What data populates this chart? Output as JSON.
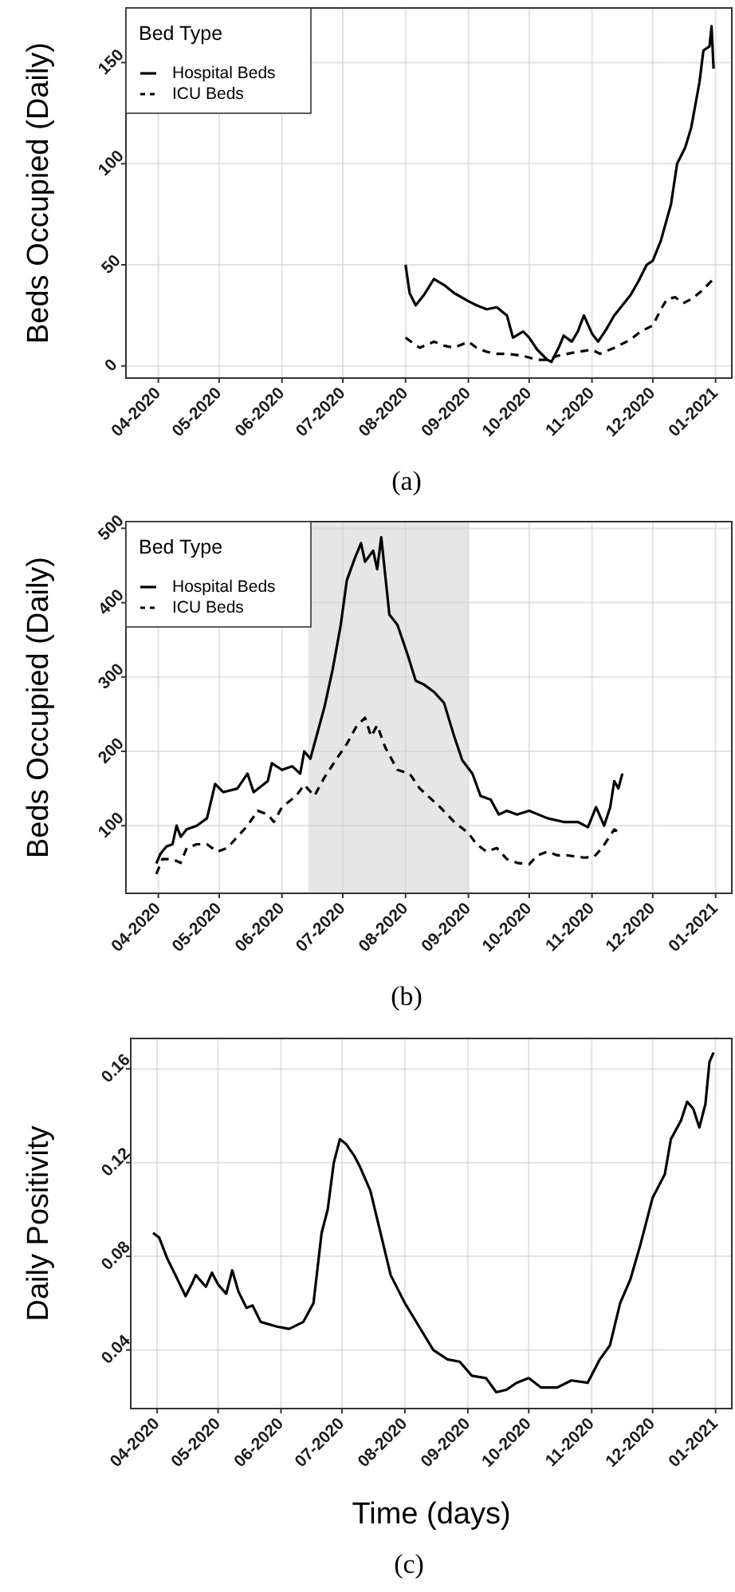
{
  "chart_data": [
    {
      "type": "line",
      "ylabel": "Beds Occupied (Daily)",
      "legend_title": "Bed Type",
      "legend": "top left",
      "grid": true,
      "annotations": [
        "(a)"
      ],
      "xlim": [
        "2020-03-16",
        "2021-01-09"
      ],
      "ylim": [
        -6,
        177
      ],
      "yticks": [
        0,
        50,
        100,
        150
      ],
      "xticks": [
        {
          "value": "2020-04-01",
          "label": "04-2020"
        },
        {
          "value": "2020-05-01",
          "label": "05-2020"
        },
        {
          "value": "2020-06-01",
          "label": "06-2020"
        },
        {
          "value": "2020-07-01",
          "label": "07-2020"
        },
        {
          "value": "2020-08-01",
          "label": "08-2020"
        },
        {
          "value": "2020-09-01",
          "label": "09-2020"
        },
        {
          "value": "2020-10-01",
          "label": "10-2020"
        },
        {
          "value": "2020-11-01",
          "label": "11-2020"
        },
        {
          "value": "2020-12-01",
          "label": "12-2020"
        },
        {
          "value": "2021-01-01",
          "label": "01-2021"
        }
      ],
      "series": [
        {
          "name": "Hospital Beds",
          "color": "#000000",
          "line_style": "solid",
          "x": [
            "2020-08-01",
            "2020-08-03",
            "2020-08-06",
            "2020-08-10",
            "2020-08-15",
            "2020-08-20",
            "2020-08-25",
            "2020-09-01",
            "2020-09-05",
            "2020-09-10",
            "2020-09-15",
            "2020-09-20",
            "2020-09-23",
            "2020-09-28",
            "2020-10-01",
            "2020-10-05",
            "2020-10-10",
            "2020-10-12",
            "2020-10-16",
            "2020-10-18",
            "2020-10-22",
            "2020-10-25",
            "2020-10-28",
            "2020-11-01",
            "2020-11-04",
            "2020-11-08",
            "2020-11-12",
            "2020-11-16",
            "2020-11-20",
            "2020-11-24",
            "2020-11-28",
            "2020-12-01",
            "2020-12-05",
            "2020-12-10",
            "2020-12-13",
            "2020-12-17",
            "2020-12-20",
            "2020-12-24",
            "2020-12-26",
            "2020-12-29",
            "2020-12-30",
            "2020-12-31"
          ],
          "values": [
            50,
            36,
            30,
            35,
            43,
            40,
            36,
            32,
            30,
            28,
            29,
            25,
            14,
            17,
            14,
            8,
            3,
            2,
            10,
            15,
            12,
            17,
            25,
            16,
            12,
            18,
            25,
            30,
            35,
            42,
            50,
            52,
            62,
            80,
            100,
            108,
            118,
            140,
            156,
            158,
            168,
            147
          ]
        },
        {
          "name": "ICU Beds",
          "color": "#000000",
          "line_style": "dashed",
          "x": [
            "2020-08-01",
            "2020-08-05",
            "2020-08-08",
            "2020-08-15",
            "2020-08-20",
            "2020-08-25",
            "2020-09-01",
            "2020-09-05",
            "2020-09-10",
            "2020-09-15",
            "2020-09-20",
            "2020-09-28",
            "2020-10-05",
            "2020-10-10",
            "2020-10-15",
            "2020-10-25",
            "2020-11-01",
            "2020-11-05",
            "2020-11-12",
            "2020-11-20",
            "2020-11-25",
            "2020-12-01",
            "2020-12-05",
            "2020-12-08",
            "2020-12-12",
            "2020-12-16",
            "2020-12-20",
            "2020-12-25",
            "2020-12-31"
          ],
          "values": [
            14,
            11,
            9,
            12,
            10,
            9,
            12,
            9,
            7,
            6,
            6,
            5,
            3,
            3,
            5,
            7,
            8,
            6,
            9,
            13,
            17,
            20,
            28,
            33,
            34,
            31,
            33,
            37,
            43
          ]
        }
      ]
    },
    {
      "type": "line",
      "ylabel": "Beds Occupied (Daily)",
      "legend_title": "Bed Type",
      "legend": "top left",
      "grid": true,
      "annotations": [
        "(b)"
      ],
      "xlim": [
        "2020-03-16",
        "2021-01-09"
      ],
      "ylim": [
        9,
        509
      ],
      "yticks": [
        100,
        200,
        300,
        400,
        500
      ],
      "xticks": [
        {
          "value": "2020-04-01",
          "label": "04-2020"
        },
        {
          "value": "2020-05-01",
          "label": "05-2020"
        },
        {
          "value": "2020-06-01",
          "label": "06-2020"
        },
        {
          "value": "2020-07-01",
          "label": "07-2020"
        },
        {
          "value": "2020-08-01",
          "label": "08-2020"
        },
        {
          "value": "2020-09-01",
          "label": "09-2020"
        },
        {
          "value": "2020-10-01",
          "label": "10-2020"
        },
        {
          "value": "2020-11-01",
          "label": "11-2020"
        },
        {
          "value": "2020-12-01",
          "label": "12-2020"
        },
        {
          "value": "2021-01-01",
          "label": "01-2021"
        }
      ],
      "bands": [
        {
          "axis": "x",
          "from": "2020-06-14",
          "to": "2020-09-01",
          "color": "#e6e6e6"
        }
      ],
      "series": [
        {
          "name": "Hospital Beds",
          "color": "#000000",
          "line_style": "solid",
          "x": [
            "2020-03-31",
            "2020-04-02",
            "2020-04-05",
            "2020-04-08",
            "2020-04-10",
            "2020-04-12",
            "2020-04-15",
            "2020-04-20",
            "2020-04-25",
            "2020-04-29",
            "2020-05-03",
            "2020-05-10",
            "2020-05-15",
            "2020-05-18",
            "2020-05-25",
            "2020-05-27",
            "2020-06-01",
            "2020-06-06",
            "2020-06-10",
            "2020-06-12",
            "2020-06-15",
            "2020-06-18",
            "2020-06-22",
            "2020-06-26",
            "2020-06-30",
            "2020-07-03",
            "2020-07-07",
            "2020-07-10",
            "2020-07-12",
            "2020-07-16",
            "2020-07-18",
            "2020-07-20",
            "2020-07-24",
            "2020-07-28",
            "2020-08-02",
            "2020-08-06",
            "2020-08-10",
            "2020-08-15",
            "2020-08-20",
            "2020-08-25",
            "2020-08-29",
            "2020-09-03",
            "2020-09-07",
            "2020-09-12",
            "2020-09-16",
            "2020-09-20",
            "2020-09-25",
            "2020-10-01",
            "2020-10-10",
            "2020-10-18",
            "2020-10-25",
            "2020-10-30",
            "2020-11-03",
            "2020-11-07",
            "2020-11-10",
            "2020-11-12",
            "2020-11-14",
            "2020-11-16"
          ],
          "values": [
            49,
            62,
            72,
            75,
            100,
            85,
            95,
            100,
            110,
            156,
            145,
            150,
            170,
            145,
            160,
            184,
            175,
            180,
            170,
            200,
            190,
            220,
            260,
            310,
            370,
            430,
            460,
            480,
            455,
            470,
            445,
            488,
            384,
            370,
            330,
            295,
            290,
            280,
            265,
            220,
            188,
            170,
            140,
            135,
            115,
            120,
            115,
            120,
            110,
            105,
            105,
            98,
            125,
            100,
            125,
            160,
            150,
            170
          ]
        },
        {
          "name": "ICU Beds",
          "color": "#000000",
          "line_style": "dashed",
          "x": [
            "2020-03-31",
            "2020-04-03",
            "2020-04-08",
            "2020-04-12",
            "2020-04-15",
            "2020-04-20",
            "2020-04-25",
            "2020-04-30",
            "2020-05-05",
            "2020-05-10",
            "2020-05-15",
            "2020-05-20",
            "2020-05-25",
            "2020-05-28",
            "2020-06-01",
            "2020-06-08",
            "2020-06-12",
            "2020-06-17",
            "2020-06-22",
            "2020-06-28",
            "2020-07-03",
            "2020-07-08",
            "2020-07-12",
            "2020-07-15",
            "2020-07-18",
            "2020-07-22",
            "2020-07-28",
            "2020-08-03",
            "2020-08-08",
            "2020-08-12",
            "2020-08-18",
            "2020-08-25",
            "2020-09-01",
            "2020-09-05",
            "2020-09-10",
            "2020-09-15",
            "2020-09-20",
            "2020-09-25",
            "2020-10-01",
            "2020-10-05",
            "2020-10-10",
            "2020-10-15",
            "2020-10-20",
            "2020-10-28",
            "2020-11-02",
            "2020-11-06",
            "2020-11-12",
            "2020-11-16"
          ],
          "values": [
            35,
            55,
            55,
            50,
            70,
            75,
            75,
            65,
            70,
            85,
            100,
            120,
            115,
            105,
            125,
            140,
            155,
            140,
            165,
            190,
            210,
            235,
            245,
            220,
            235,
            205,
            175,
            170,
            150,
            140,
            125,
            105,
            90,
            75,
            65,
            70,
            55,
            50,
            48,
            60,
            65,
            60,
            60,
            57,
            58,
            70,
            95,
            88
          ]
        }
      ]
    },
    {
      "type": "line",
      "ylabel": "Daily Positivity",
      "xlabel": "Time (days)",
      "grid": true,
      "annotations": [
        "(c)"
      ],
      "xlim": [
        "2020-03-19",
        "2021-01-09"
      ],
      "ylim": [
        0.015,
        0.173
      ],
      "yticks": [
        {
          "value": 0.04,
          "label": "0.04"
        },
        {
          "value": 0.08,
          "label": "0.08"
        },
        {
          "value": 0.12,
          "label": "0.12"
        },
        {
          "value": 0.16,
          "label": "0.16"
        }
      ],
      "xticks": [
        {
          "value": "2020-04-01",
          "label": "04-2020"
        },
        {
          "value": "2020-05-01",
          "label": "05-2020"
        },
        {
          "value": "2020-06-01",
          "label": "06-2020"
        },
        {
          "value": "2020-07-01",
          "label": "07-2020"
        },
        {
          "value": "2020-08-01",
          "label": "08-2020"
        },
        {
          "value": "2020-09-01",
          "label": "09-2020"
        },
        {
          "value": "2020-10-01",
          "label": "10-2020"
        },
        {
          "value": "2020-11-01",
          "label": "11-2020"
        },
        {
          "value": "2020-12-01",
          "label": "12-2020"
        },
        {
          "value": "2021-01-01",
          "label": "01-2021"
        }
      ],
      "series": [
        {
          "color": "#000000",
          "line_style": "solid",
          "x": [
            "2020-03-30",
            "2020-04-02",
            "2020-04-06",
            "2020-04-10",
            "2020-04-15",
            "2020-04-18",
            "2020-04-20",
            "2020-04-25",
            "2020-04-28",
            "2020-05-01",
            "2020-05-05",
            "2020-05-08",
            "2020-05-11",
            "2020-05-15",
            "2020-05-18",
            "2020-05-22",
            "2020-05-30",
            "2020-06-05",
            "2020-06-12",
            "2020-06-17",
            "2020-06-21",
            "2020-06-24",
            "2020-06-27",
            "2020-06-30",
            "2020-07-03",
            "2020-07-07",
            "2020-07-10",
            "2020-07-15",
            "2020-07-20",
            "2020-07-25",
            "2020-08-01",
            "2020-08-08",
            "2020-08-15",
            "2020-08-22",
            "2020-08-28",
            "2020-09-03",
            "2020-09-10",
            "2020-09-15",
            "2020-09-20",
            "2020-09-25",
            "2020-10-01",
            "2020-10-07",
            "2020-10-15",
            "2020-10-22",
            "2020-10-30",
            "2020-11-05",
            "2020-11-10",
            "2020-11-15",
            "2020-11-20",
            "2020-11-25",
            "2020-12-01",
            "2020-12-07",
            "2020-12-10",
            "2020-12-15",
            "2020-12-18",
            "2020-12-21",
            "2020-12-24",
            "2020-12-27",
            "2020-12-29",
            "2020-12-31"
          ],
          "values": [
            0.09,
            0.088,
            0.079,
            0.072,
            0.063,
            0.068,
            0.072,
            0.067,
            0.073,
            0.068,
            0.064,
            0.074,
            0.065,
            0.058,
            0.059,
            0.052,
            0.05,
            0.049,
            0.052,
            0.06,
            0.09,
            0.1,
            0.12,
            0.13,
            0.128,
            0.123,
            0.118,
            0.108,
            0.09,
            0.072,
            0.06,
            0.05,
            0.04,
            0.036,
            0.035,
            0.029,
            0.028,
            0.022,
            0.023,
            0.026,
            0.028,
            0.024,
            0.024,
            0.027,
            0.026,
            0.036,
            0.042,
            0.06,
            0.07,
            0.085,
            0.105,
            0.115,
            0.13,
            0.138,
            0.146,
            0.143,
            0.135,
            0.145,
            0.163,
            0.167
          ]
        }
      ]
    }
  ]
}
